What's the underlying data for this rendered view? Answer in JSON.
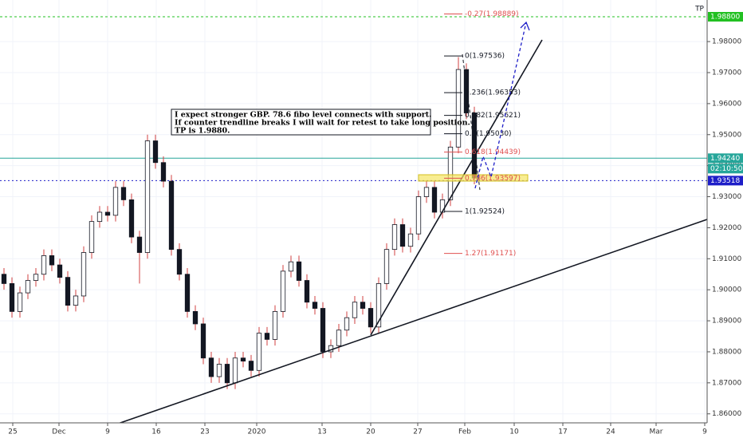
{
  "chart_data": {
    "type": "candlestick",
    "x": [
      0,
      1,
      2,
      3,
      4,
      5,
      6,
      7,
      8,
      9,
      10,
      11,
      12,
      13,
      14,
      15,
      16,
      17,
      18,
      19,
      20,
      21,
      22,
      23,
      24,
      25,
      26,
      27,
      28,
      29,
      30,
      31,
      32,
      33,
      34,
      35,
      36,
      37,
      38,
      39,
      40,
      41,
      42,
      43,
      44,
      45,
      46,
      47,
      48,
      49,
      50,
      51,
      52,
      53,
      54,
      55,
      56,
      57,
      58,
      59
    ],
    "open": [
      1.905,
      1.902,
      1.893,
      1.899,
      1.903,
      1.905,
      1.911,
      1.908,
      1.904,
      1.895,
      1.898,
      1.912,
      1.922,
      1.925,
      1.924,
      1.933,
      1.929,
      1.917,
      1.912,
      1.948,
      1.941,
      1.935,
      1.913,
      1.905,
      1.893,
      1.889,
      1.878,
      1.872,
      1.876,
      1.87,
      1.878,
      1.877,
      1.874,
      1.886,
      1.884,
      1.893,
      1.906,
      1.909,
      1.903,
      1.896,
      1.894,
      1.88,
      1.882,
      1.887,
      1.891,
      1.896,
      1.894,
      1.888,
      1.902,
      1.913,
      1.921,
      1.914,
      1.918,
      1.93,
      1.933,
      1.925,
      1.929,
      1.946,
      1.971,
      1.957
    ],
    "high": [
      1.907,
      1.904,
      1.901,
      1.905,
      1.907,
      1.913,
      1.913,
      1.91,
      1.906,
      1.9,
      1.914,
      1.924,
      1.927,
      1.927,
      1.935,
      1.935,
      1.931,
      1.919,
      1.95,
      1.95,
      1.943,
      1.937,
      1.915,
      1.907,
      1.895,
      1.891,
      1.88,
      1.878,
      1.878,
      1.88,
      1.88,
      1.879,
      1.888,
      1.888,
      1.895,
      1.908,
      1.911,
      1.911,
      1.905,
      1.898,
      1.896,
      1.884,
      1.889,
      1.893,
      1.898,
      1.898,
      1.896,
      1.904,
      1.915,
      1.923,
      1.923,
      1.92,
      1.932,
      1.935,
      1.935,
      1.931,
      1.948,
      1.975,
      1.973,
      1.959
    ],
    "low": [
      1.9,
      1.891,
      1.891,
      1.897,
      1.901,
      1.903,
      1.906,
      1.902,
      1.893,
      1.893,
      1.896,
      1.91,
      1.92,
      1.922,
      1.922,
      1.927,
      1.915,
      1.902,
      1.91,
      1.939,
      1.933,
      1.911,
      1.903,
      1.891,
      1.887,
      1.876,
      1.87,
      1.87,
      1.868,
      1.868,
      1.875,
      1.872,
      1.872,
      1.882,
      1.882,
      1.891,
      1.904,
      1.901,
      1.894,
      1.892,
      1.878,
      1.878,
      1.88,
      1.885,
      1.889,
      1.892,
      1.886,
      1.886,
      1.9,
      1.911,
      1.912,
      1.912,
      1.916,
      1.928,
      1.923,
      1.923,
      1.927,
      1.944,
      1.955,
      1.934
    ],
    "close": [
      1.902,
      1.893,
      1.899,
      1.903,
      1.905,
      1.911,
      1.908,
      1.904,
      1.895,
      1.898,
      1.912,
      1.922,
      1.925,
      1.924,
      1.933,
      1.929,
      1.917,
      1.912,
      1.948,
      1.941,
      1.935,
      1.913,
      1.905,
      1.893,
      1.889,
      1.878,
      1.872,
      1.876,
      1.87,
      1.878,
      1.877,
      1.874,
      1.886,
      1.884,
      1.893,
      1.906,
      1.909,
      1.903,
      1.896,
      1.894,
      1.88,
      1.882,
      1.887,
      1.891,
      1.896,
      1.894,
      1.888,
      1.902,
      1.913,
      1.921,
      1.914,
      1.918,
      1.93,
      1.933,
      1.925,
      1.929,
      1.946,
      1.971,
      1.957,
      1.936
    ],
    "up_color": "#ffffff",
    "down_color": "#131722",
    "wick_color": "#d04040",
    "xlim": [
      -0.5,
      88.2
    ],
    "ylim": [
      1.8589,
      1.9934
    ],
    "xticks": [
      {
        "value": 1.1,
        "label": "25"
      },
      {
        "value": 6.9,
        "label": "Dec"
      },
      {
        "value": 13.0,
        "label": "9"
      },
      {
        "value": 19.1,
        "label": "16"
      },
      {
        "value": 25.2,
        "label": "23"
      },
      {
        "value": 31.7,
        "label": "2020"
      },
      {
        "value": 39.9,
        "label": "13"
      },
      {
        "value": 46.0,
        "label": "20"
      },
      {
        "value": 51.9,
        "label": "27"
      },
      {
        "value": 57.8,
        "label": "Feb"
      },
      {
        "value": 64.0,
        "label": "10"
      },
      {
        "value": 70.1,
        "label": "17"
      },
      {
        "value": 76.1,
        "label": "24"
      },
      {
        "value": 81.8,
        "label": "Mar"
      },
      {
        "value": 87.9,
        "label": "9"
      }
    ],
    "yticks": [
      {
        "value": 1.86,
        "label": "1.86000"
      },
      {
        "value": 1.87,
        "label": "1.87000"
      },
      {
        "value": 1.88,
        "label": "1.88000"
      },
      {
        "value": 1.89,
        "label": "1.89000"
      },
      {
        "value": 1.9,
        "label": "1.90000"
      },
      {
        "value": 1.91,
        "label": "1.91000"
      },
      {
        "value": 1.92,
        "label": "1.92000"
      },
      {
        "value": 1.93,
        "label": "1.93000"
      },
      {
        "value": 1.94,
        "label": "1.94000"
      },
      {
        "value": 1.95,
        "label": "1.95000"
      },
      {
        "value": 1.96,
        "label": "1.96000"
      },
      {
        "value": 1.97,
        "label": "1.97000"
      },
      {
        "value": 1.98,
        "label": "1.98000"
      }
    ],
    "levels": [
      {
        "value": 1.988,
        "label": "1.98800",
        "color": "#22c022",
        "dash": "3,3",
        "name": "TP"
      },
      {
        "value": 1.9424,
        "label": "1.94240",
        "color": "#26a69a",
        "dash": "none"
      },
      {
        "value": 1.93518,
        "label": "1.93518",
        "color": "#1e1ec8",
        "dash": "2,3"
      }
    ],
    "countdown": "02:10:50",
    "fibs": [
      {
        "value": 1.98889,
        "label": "-0.27(1.98889)",
        "color": "#e05050"
      },
      {
        "value": 1.97536,
        "label": "0(1.97536)",
        "color": "#131722"
      },
      {
        "value": 1.96353,
        "label": "0.236(1.96353)",
        "color": "#131722"
      },
      {
        "value": 1.95621,
        "label": "0.382(1.95621)",
        "color": "#131722"
      },
      {
        "value": 1.9503,
        "label": "0.5(1.95030)",
        "color": "#131722"
      },
      {
        "value": 1.94439,
        "label": "0.618(1.94439)",
        "color": "#e05050"
      },
      {
        "value": 1.93597,
        "label": "0.786(1.93597)",
        "color": "#e05050"
      },
      {
        "value": 1.92524,
        "label": "1(1.92524)",
        "color": "#131722"
      },
      {
        "value": 1.91171,
        "label": "1.27(1.91171)",
        "color": "#e05050"
      }
    ],
    "annotation": [
      "I expect stronger GBP. 78.6 fibo level connects with support.",
      "If counter trendline breaks I will wait for retest to take long position.",
      "TP is 1.9880."
    ]
  }
}
